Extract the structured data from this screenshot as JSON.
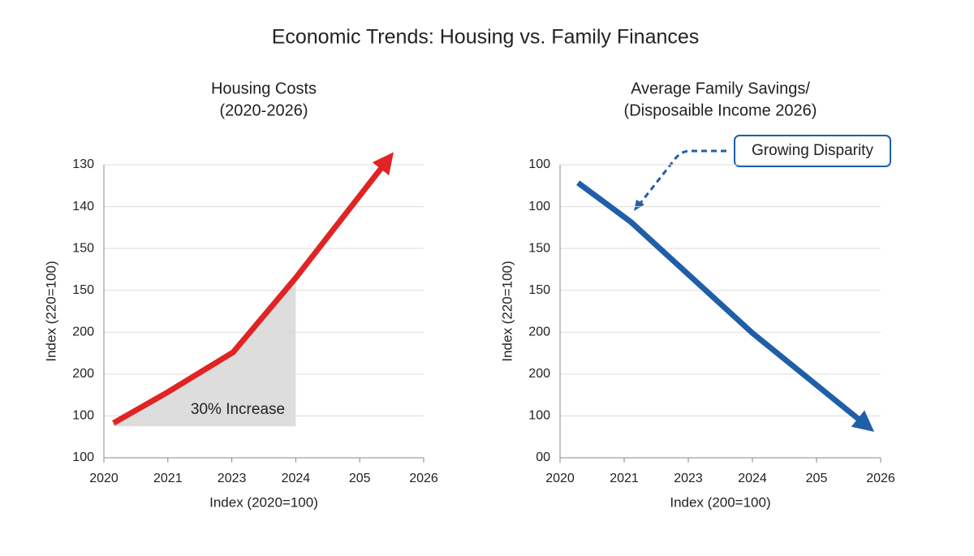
{
  "title": "Economic Trends: Housing vs. Family Finances",
  "chart_data": [
    {
      "type": "line",
      "title": [
        "Housing Costs",
        "(2020-2026)"
      ],
      "x_label": "Index (2020=100)",
      "y_label": "Index (220=100)",
      "xlim": [
        0,
        5
      ],
      "ylim": [
        0,
        7
      ],
      "xticks": [
        {
          "value": 0,
          "label": "2020"
        },
        {
          "value": 1,
          "label": "2021"
        },
        {
          "value": 2,
          "label": "2023"
        },
        {
          "value": 3,
          "label": "2024"
        },
        {
          "value": 4,
          "label": "205"
        },
        {
          "value": 5,
          "label": "2026"
        }
      ],
      "yticks": [
        {
          "value": 0,
          "label": "100"
        },
        {
          "value": 1,
          "label": "100"
        },
        {
          "value": 2,
          "label": "200"
        },
        {
          "value": 3,
          "label": "200"
        },
        {
          "value": 4,
          "label": "150"
        },
        {
          "value": 5,
          "label": "150"
        },
        {
          "value": 6,
          "label": "140"
        },
        {
          "value": 7,
          "label": "130"
        }
      ],
      "grid": true,
      "area_color": "#d9d9d9",
      "series": [
        {
          "name": "Housing Costs",
          "color": "#e02424",
          "x": [
            0.15,
            1,
            2.02,
            3,
            4.53
          ],
          "values": [
            0.83,
            1.57,
            2.52,
            4.3,
            7.3
          ]
        }
      ],
      "annotation": "30% Increase"
    },
    {
      "type": "line",
      "title": [
        "Average Family Savings/",
        "(Disposaible Income 2026)"
      ],
      "x_label": "Index (200=100)",
      "y_label": "Index (220=100)",
      "xlim": [
        0,
        5
      ],
      "ylim": [
        0,
        7
      ],
      "xticks": [
        {
          "value": 0,
          "label": "2020"
        },
        {
          "value": 1,
          "label": "2021"
        },
        {
          "value": 2,
          "label": "2023"
        },
        {
          "value": 3,
          "label": "2024"
        },
        {
          "value": 4,
          "label": "205"
        },
        {
          "value": 5,
          "label": "2026"
        }
      ],
      "yticks": [
        {
          "value": 0,
          "label": "00"
        },
        {
          "value": 1,
          "label": "100"
        },
        {
          "value": 2,
          "label": "200"
        },
        {
          "value": 3,
          "label": "200"
        },
        {
          "value": 4,
          "label": "150"
        },
        {
          "value": 5,
          "label": "150"
        },
        {
          "value": 6,
          "label": "100"
        },
        {
          "value": 7,
          "label": "100"
        }
      ],
      "grid": true,
      "series": [
        {
          "name": "Average Family Savings",
          "color": "#1f5fa8",
          "x": [
            0.28,
            1.1,
            2.1,
            3,
            4.9
          ],
          "values": [
            6.57,
            5.64,
            4.24,
            2.98,
            0.62
          ]
        }
      ],
      "annotation": "Growing Disparity"
    }
  ]
}
